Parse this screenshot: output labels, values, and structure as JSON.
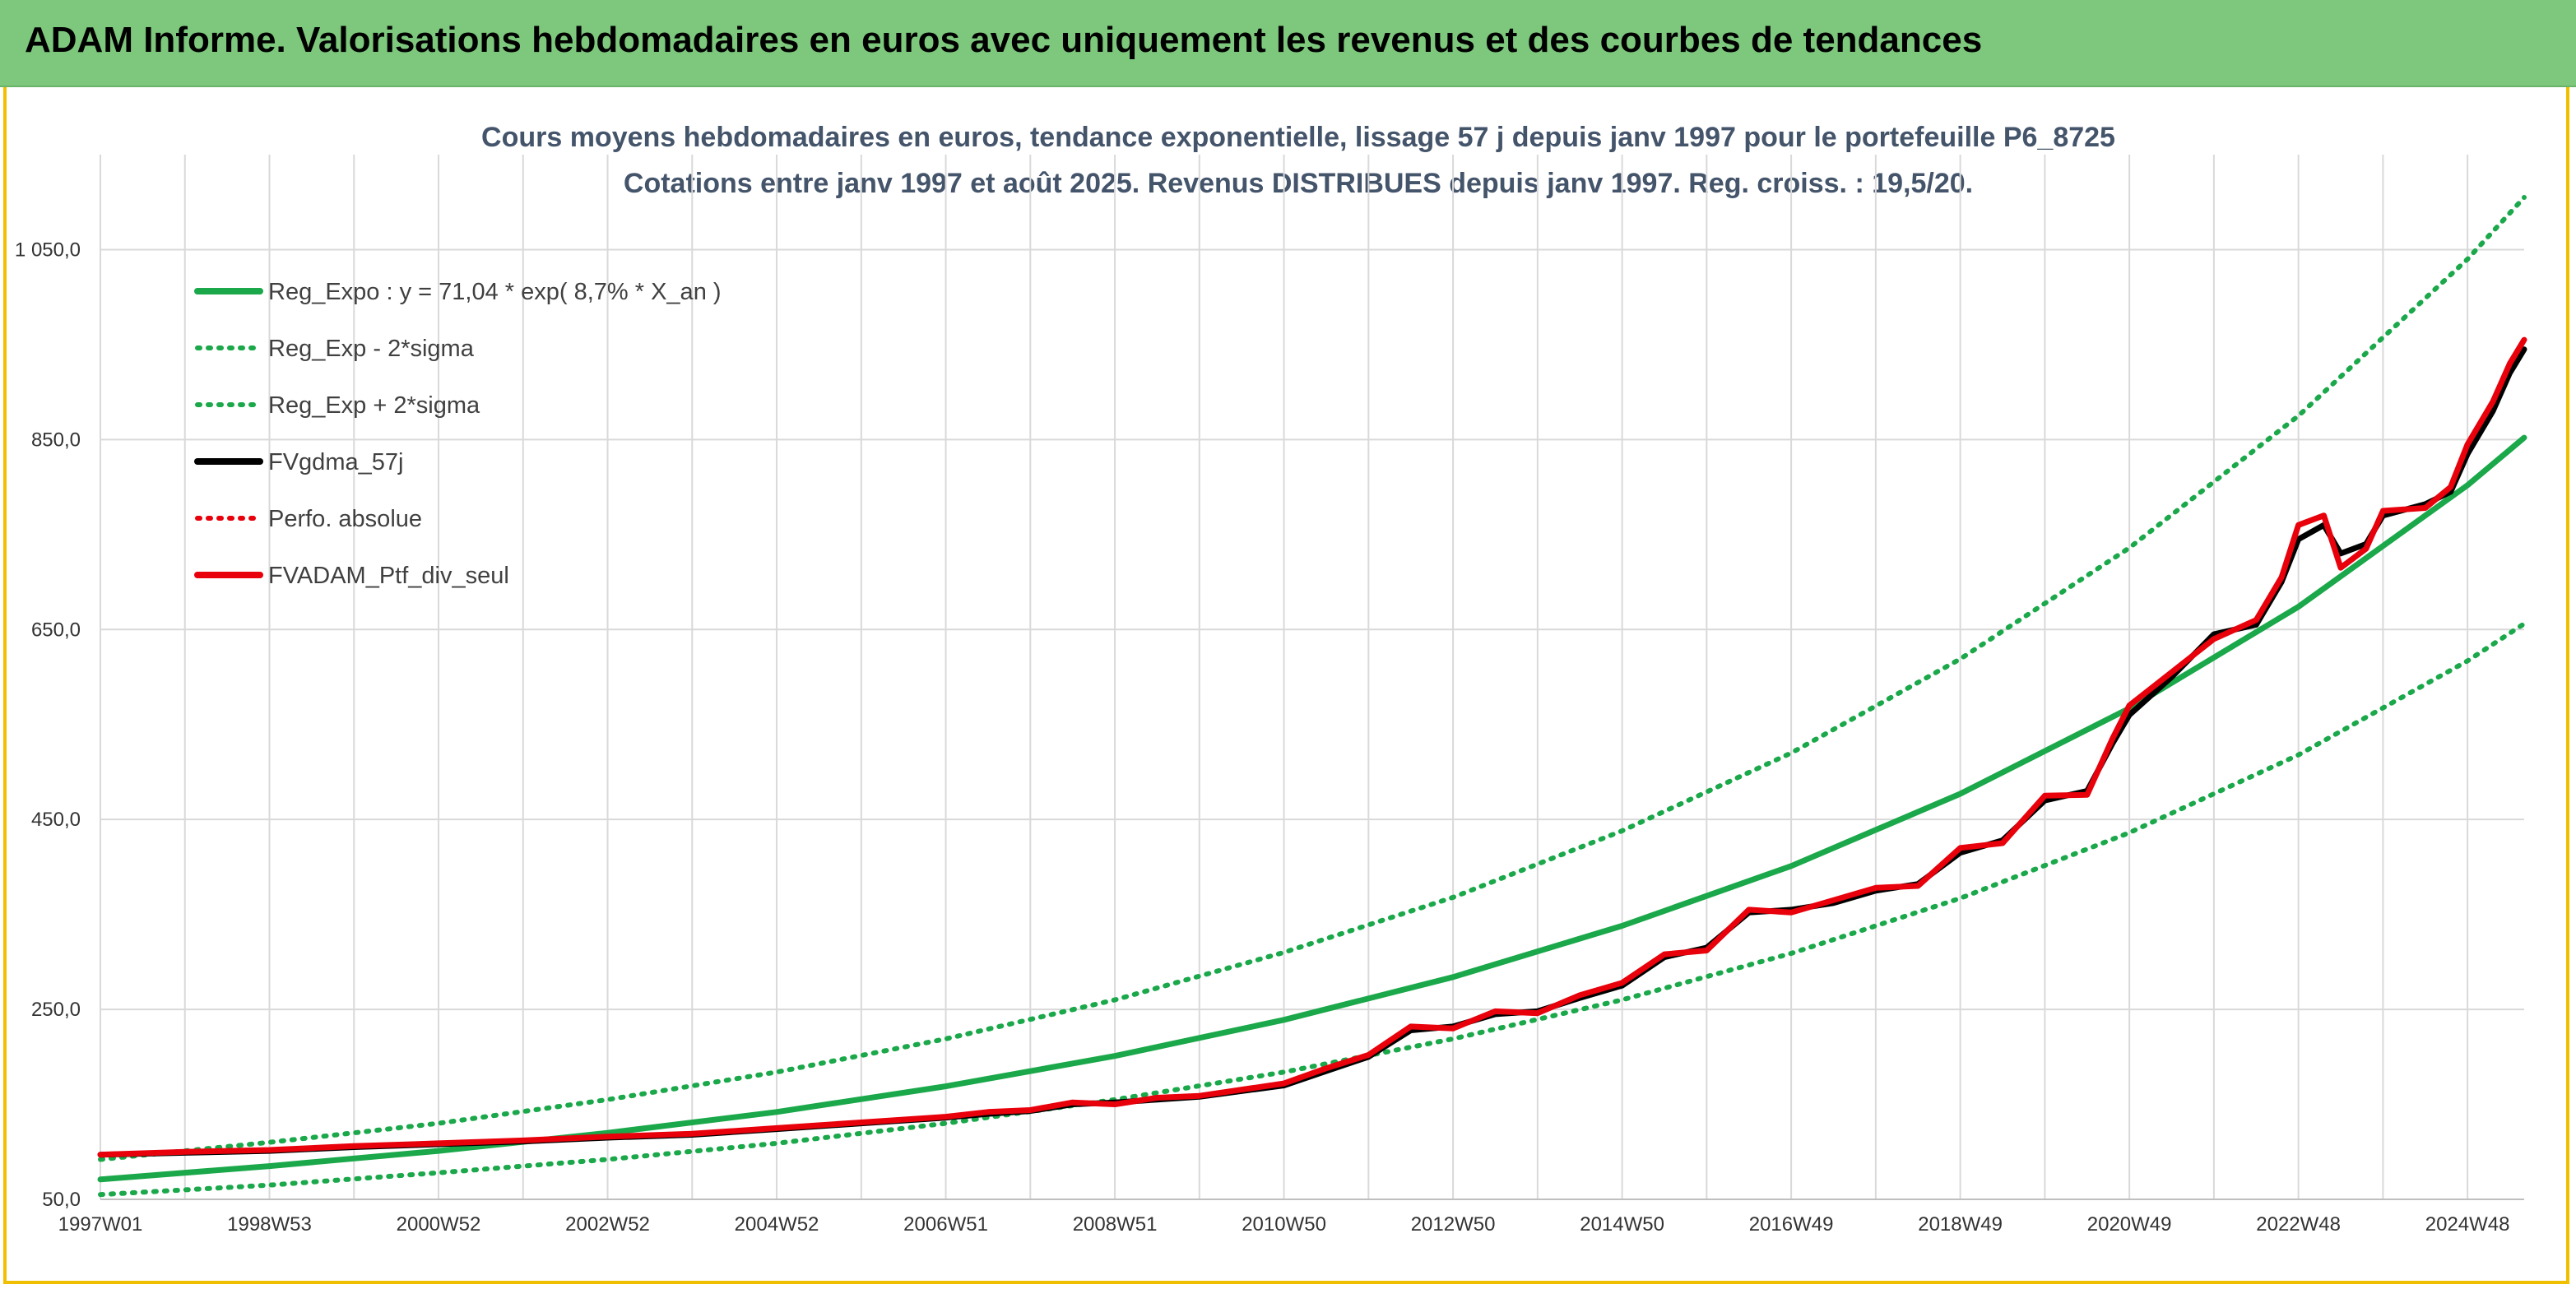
{
  "header": {
    "title": "ADAM Informe. Valorisations hebdomadaires en euros avec uniquement les revenus et des courbes de tendances"
  },
  "colors": {
    "header_bg": "#7dc87c",
    "frame_accent": "#f0c000",
    "reg_green": "#1aa84a",
    "fvgdma_black": "#000000",
    "adam_red": "#e8000b"
  },
  "chart_data": {
    "type": "line",
    "title_lines": [
      "Cours moyens hebdomadaires en euros, tendance exponentielle, lissage 57 j depuis janv 1997 pour le portefeuille P6_8725",
      "Cotations entre janv 1997 et août 2025. Revenus DISTRIBUES depuis janv 1997. Reg. croiss. : 19,5/20."
    ],
    "x_domain": [
      1997.0,
      2025.67
    ],
    "x_ticks": [
      {
        "label": "1997W01",
        "x": 1997.0
      },
      {
        "label": "1998W53",
        "x": 1999.0
      },
      {
        "label": "2000W52",
        "x": 2001.0
      },
      {
        "label": "2002W52",
        "x": 2003.0
      },
      {
        "label": "2004W52",
        "x": 2005.0
      },
      {
        "label": "2006W51",
        "x": 2007.0
      },
      {
        "label": "2008W51",
        "x": 2009.0
      },
      {
        "label": "2010W50",
        "x": 2011.0
      },
      {
        "label": "2012W50",
        "x": 2013.0
      },
      {
        "label": "2014W50",
        "x": 2015.0
      },
      {
        "label": "2016W49",
        "x": 2017.0
      },
      {
        "label": "2018W49",
        "x": 2019.0
      },
      {
        "label": "2020W49",
        "x": 2021.0
      },
      {
        "label": "2022W48",
        "x": 2023.0
      },
      {
        "label": "2024W48",
        "x": 2025.0
      }
    ],
    "ylim": [
      50,
      1150
    ],
    "y_ticks": [
      {
        "label": "50,0",
        "value": 50
      },
      {
        "label": "250,0",
        "value": 250
      },
      {
        "label": "450,0",
        "value": 450
      },
      {
        "label": "650,0",
        "value": 650
      },
      {
        "label": "850,0",
        "value": 850
      },
      {
        "label": "1 050,0",
        "value": 1050
      }
    ],
    "grid": true,
    "legend_position": "top-left",
    "legend": [
      {
        "name": "Reg_Expo : y = 71,04 * exp( 8,7% *  X_an )",
        "color": "#1aa84a",
        "style": "solid"
      },
      {
        "name": "Reg_Exp - 2*sigma",
        "color": "#1aa84a",
        "style": "dotted"
      },
      {
        "name": "Reg_Exp + 2*sigma",
        "color": "#1aa84a",
        "style": "dotted"
      },
      {
        "name": "FVgdma_57j",
        "color": "#000000",
        "style": "solid"
      },
      {
        "name": "Perfo. absolue",
        "color": "#e8000b",
        "style": "dotted"
      },
      {
        "name": "FVADAM_Ptf_div_seul",
        "color": "#e8000b",
        "style": "solid"
      }
    ],
    "series": [
      {
        "name": "Reg_Expo : y = 71,04 * exp( 8,7% *  X_an )",
        "color": "#1aa84a",
        "style": "solid",
        "points": [
          [
            1997.0,
            71
          ],
          [
            1999.0,
            85
          ],
          [
            2001.0,
            101
          ],
          [
            2003.0,
            120
          ],
          [
            2005.0,
            142
          ],
          [
            2007.0,
            169
          ],
          [
            2009.0,
            201
          ],
          [
            2011.0,
            239
          ],
          [
            2013.0,
            284
          ],
          [
            2015.0,
            338
          ],
          [
            2017.0,
            401
          ],
          [
            2019.0,
            477
          ],
          [
            2021.0,
            567
          ],
          [
            2023.0,
            674
          ],
          [
            2025.0,
            802
          ],
          [
            2025.67,
            852
          ]
        ]
      },
      {
        "name": "Reg_Exp - 2*sigma",
        "color": "#1aa84a",
        "style": "dotted",
        "points": [
          [
            1997.0,
            55
          ],
          [
            1999.0,
            65
          ],
          [
            2001.0,
            78
          ],
          [
            2003.0,
            92
          ],
          [
            2005.0,
            109
          ],
          [
            2007.0,
            130
          ],
          [
            2009.0,
            155
          ],
          [
            2011.0,
            184
          ],
          [
            2013.0,
            219
          ],
          [
            2015.0,
            260
          ],
          [
            2017.0,
            309
          ],
          [
            2019.0,
            367
          ],
          [
            2021.0,
            436
          ],
          [
            2023.0,
            518
          ],
          [
            2025.0,
            617
          ],
          [
            2025.67,
            656
          ]
        ]
      },
      {
        "name": "Reg_Exp + 2*sigma",
        "color": "#1aa84a",
        "style": "dotted",
        "points": [
          [
            1997.0,
            92
          ],
          [
            1999.0,
            110
          ],
          [
            2001.0,
            130
          ],
          [
            2003.0,
            155
          ],
          [
            2005.0,
            184
          ],
          [
            2007.0,
            219
          ],
          [
            2009.0,
            260
          ],
          [
            2011.0,
            310
          ],
          [
            2013.0,
            368
          ],
          [
            2015.0,
            438
          ],
          [
            2017.0,
            520
          ],
          [
            2019.0,
            619
          ],
          [
            2021.0,
            736
          ],
          [
            2023.0,
            875
          ],
          [
            2025.0,
            1040
          ],
          [
            2025.67,
            1105
          ]
        ]
      },
      {
        "name": "FVgdma_57j",
        "color": "#000000",
        "style": "solid",
        "points": [
          [
            1997.0,
            97
          ],
          [
            1998.0,
            99
          ],
          [
            1999.0,
            101
          ],
          [
            2000.0,
            105
          ],
          [
            2001.0,
            108
          ],
          [
            2002.0,
            111
          ],
          [
            2003.0,
            115
          ],
          [
            2004.0,
            118
          ],
          [
            2005.0,
            124
          ],
          [
            2006.0,
            130
          ],
          [
            2007.0,
            136
          ],
          [
            2007.5,
            140
          ],
          [
            2008.0,
            143
          ],
          [
            2008.5,
            150
          ],
          [
            2009.0,
            152
          ],
          [
            2009.5,
            155
          ],
          [
            2010.0,
            158
          ],
          [
            2011.0,
            170
          ],
          [
            2011.5,
            185
          ],
          [
            2012.0,
            200
          ],
          [
            2012.5,
            228
          ],
          [
            2013.0,
            232
          ],
          [
            2013.5,
            245
          ],
          [
            2014.0,
            248
          ],
          [
            2014.5,
            262
          ],
          [
            2015.0,
            275
          ],
          [
            2015.5,
            305
          ],
          [
            2016.0,
            315
          ],
          [
            2016.5,
            352
          ],
          [
            2017.0,
            355
          ],
          [
            2017.5,
            362
          ],
          [
            2018.0,
            375
          ],
          [
            2018.5,
            382
          ],
          [
            2019.0,
            415
          ],
          [
            2019.5,
            428
          ],
          [
            2020.0,
            470
          ],
          [
            2020.5,
            480
          ],
          [
            2020.8,
            530
          ],
          [
            2021.0,
            560
          ],
          [
            2021.5,
            600
          ],
          [
            2022.0,
            645
          ],
          [
            2022.5,
            655
          ],
          [
            2022.8,
            700
          ],
          [
            2023.0,
            745
          ],
          [
            2023.3,
            760
          ],
          [
            2023.5,
            730
          ],
          [
            2023.8,
            740
          ],
          [
            2024.0,
            770
          ],
          [
            2024.5,
            782
          ],
          [
            2024.8,
            795
          ],
          [
            2025.0,
            835
          ],
          [
            2025.3,
            880
          ],
          [
            2025.5,
            920
          ],
          [
            2025.67,
            945
          ]
        ]
      },
      {
        "name": "FVADAM_Ptf_div_seul",
        "color": "#e8000b",
        "style": "solid",
        "points": [
          [
            1997.0,
            97
          ],
          [
            1998.0,
            100
          ],
          [
            1999.0,
            102
          ],
          [
            2000.0,
            106
          ],
          [
            2001.0,
            109
          ],
          [
            2002.0,
            112
          ],
          [
            2003.0,
            116
          ],
          [
            2004.0,
            119
          ],
          [
            2005.0,
            125
          ],
          [
            2006.0,
            131
          ],
          [
            2007.0,
            137
          ],
          [
            2007.5,
            142
          ],
          [
            2008.0,
            144
          ],
          [
            2008.5,
            152
          ],
          [
            2009.0,
            150
          ],
          [
            2009.5,
            157
          ],
          [
            2010.0,
            159
          ],
          [
            2011.0,
            172
          ],
          [
            2011.5,
            188
          ],
          [
            2012.0,
            202
          ],
          [
            2012.5,
            232
          ],
          [
            2013.0,
            230
          ],
          [
            2013.5,
            248
          ],
          [
            2014.0,
            246
          ],
          [
            2014.5,
            265
          ],
          [
            2015.0,
            278
          ],
          [
            2015.5,
            308
          ],
          [
            2016.0,
            312
          ],
          [
            2016.5,
            355
          ],
          [
            2017.0,
            352
          ],
          [
            2017.5,
            365
          ],
          [
            2018.0,
            378
          ],
          [
            2018.5,
            380
          ],
          [
            2019.0,
            420
          ],
          [
            2019.5,
            425
          ],
          [
            2020.0,
            475
          ],
          [
            2020.5,
            476
          ],
          [
            2020.8,
            535
          ],
          [
            2021.0,
            570
          ],
          [
            2021.5,
            605
          ],
          [
            2022.0,
            640
          ],
          [
            2022.5,
            660
          ],
          [
            2022.8,
            705
          ],
          [
            2023.0,
            760
          ],
          [
            2023.3,
            770
          ],
          [
            2023.5,
            715
          ],
          [
            2023.8,
            735
          ],
          [
            2024.0,
            775
          ],
          [
            2024.5,
            778
          ],
          [
            2024.8,
            800
          ],
          [
            2025.0,
            845
          ],
          [
            2025.3,
            890
          ],
          [
            2025.5,
            930
          ],
          [
            2025.67,
            955
          ]
        ]
      }
    ]
  }
}
